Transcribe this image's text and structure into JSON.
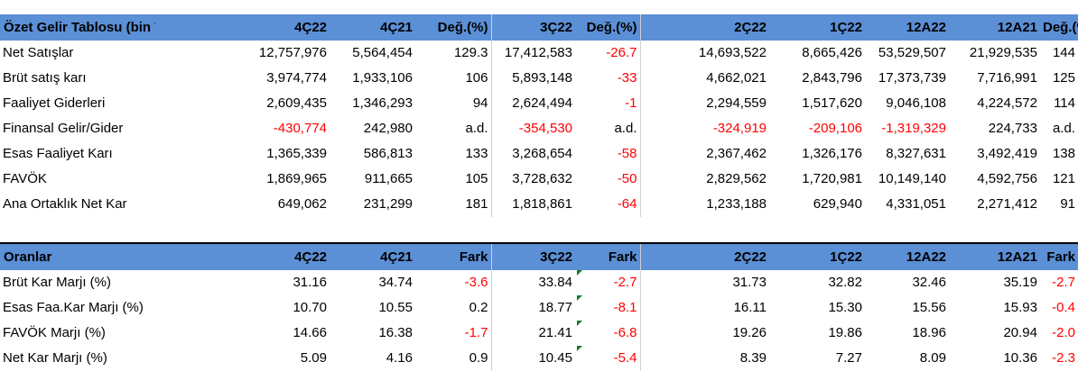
{
  "summary": {
    "headers": [
      "Özet Gelir Tablosu (bin TL)",
      "4Ç22",
      "4Ç21",
      "Değ.(%)",
      "3Ç22",
      "Değ.(%)",
      "2Ç22",
      "1Ç22",
      "12A22",
      "12A21",
      "Değ.(%)"
    ],
    "rows": [
      [
        "Net Satışlar",
        "12,757,976",
        "5,564,454",
        "129.3",
        "17,412,583",
        "-26.7",
        "14,693,522",
        "8,665,426",
        "53,529,507",
        "21,929,535",
        "144"
      ],
      [
        "Brüt satış karı",
        "3,974,774",
        "1,933,106",
        "106",
        "5,893,148",
        "-33",
        "4,662,021",
        "2,843,796",
        "17,373,739",
        "7,716,991",
        "125"
      ],
      [
        "Faaliyet Giderleri",
        "2,609,435",
        "1,346,293",
        "94",
        "2,624,494",
        "-1",
        "2,294,559",
        "1,517,620",
        "9,046,108",
        "4,224,572",
        "114"
      ],
      [
        "Finansal Gelir/Gider",
        "-430,774",
        "242,980",
        "a.d.",
        "-354,530",
        "a.d.",
        "-324,919",
        "-209,106",
        "-1,319,329",
        "224,733",
        "a.d."
      ],
      [
        "Esas Faaliyet Karı",
        "1,365,339",
        "586,813",
        "133",
        "3,268,654",
        "-58",
        "2,367,462",
        "1,326,176",
        "8,327,631",
        "3,492,419",
        "138"
      ],
      [
        "FAVÖK",
        "1,869,965",
        "911,665",
        "105",
        "3,728,632",
        "-50",
        "2,829,562",
        "1,720,981",
        "10,149,140",
        "4,592,756",
        "121"
      ],
      [
        "Ana Ortaklık Net Kar",
        "649,062",
        "231,299",
        "181",
        "1,818,861",
        "-64",
        "1,233,188",
        "629,940",
        "4,331,051",
        "2,271,412",
        "91"
      ]
    ]
  },
  "ratios": {
    "headers": [
      "Oranlar",
      "4Ç22",
      "4Ç21",
      "Fark",
      "3Ç22",
      "Fark",
      "2Ç22",
      "1Ç22",
      "12A22",
      "12A21",
      "Fark"
    ],
    "rows": [
      [
        "Brüt Kar Marjı (%)",
        "31.16",
        "34.74",
        "-3.6",
        "33.84",
        "-2.7",
        "31.73",
        "32.82",
        "32.46",
        "35.19",
        "-2.7"
      ],
      [
        "Esas Faa.Kar Marjı (%)",
        "10.70",
        "10.55",
        "0.2",
        "18.77",
        "-8.1",
        "16.11",
        "15.30",
        "15.56",
        "15.93",
        "-0.4"
      ],
      [
        "FAVÖK Marjı (%)",
        "14.66",
        "16.38",
        "-1.7",
        "21.41",
        "-6.8",
        "19.26",
        "19.86",
        "18.96",
        "20.94",
        "-2.0"
      ],
      [
        "Net Kar Marjı (%)",
        "5.09",
        "4.16",
        "0.9",
        "10.45",
        "-5.4",
        "8.39",
        "7.27",
        "8.09",
        "10.36",
        "-2.3"
      ]
    ]
  },
  "colors": {
    "header_bg": "#5b8fd6",
    "negative": "#ff0000",
    "comment_marker": "#0e7d2b"
  }
}
